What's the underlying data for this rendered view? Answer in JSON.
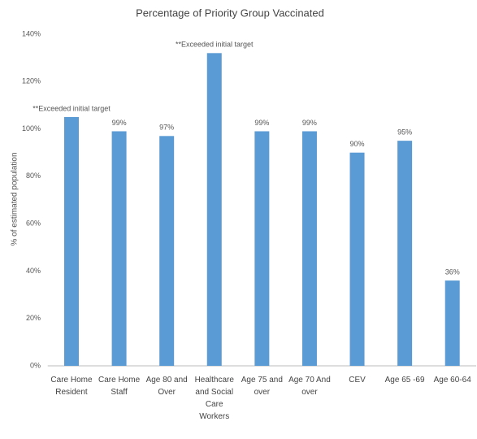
{
  "chart_data": {
    "type": "bar",
    "title": "Percentage of Priority Group Vaccinated",
    "y_label": "% of estimated population",
    "categories": [
      "Care Home Resident",
      "Care Home Staff",
      "Age 80 and Over",
      "Healthcare and Social Care Workers",
      "Age 75 and over",
      "Age 70 And over",
      "CEV",
      "Age 65 -69",
      "Age 60-64"
    ],
    "values": [
      105,
      99,
      97,
      132,
      99,
      99,
      90,
      95,
      36
    ],
    "value_labels": [
      "**Exceeded initial target",
      "99%",
      "97%",
      "**Exceeded initial target",
      "99%",
      "99%",
      "90%",
      "95%",
      "36%"
    ],
    "color": "#5b9bd5",
    "ylim": [
      0,
      140
    ],
    "yticks": [
      {
        "value": 0,
        "label": "0%"
      },
      {
        "value": 20,
        "label": "20%"
      },
      {
        "value": 40,
        "label": "40%"
      },
      {
        "value": 60,
        "label": "60%"
      },
      {
        "value": 80,
        "label": "80%"
      },
      {
        "value": 100,
        "label": "100%"
      },
      {
        "value": 120,
        "label": "120%"
      },
      {
        "value": 140,
        "label": "140%"
      }
    ],
    "grid": false
  }
}
